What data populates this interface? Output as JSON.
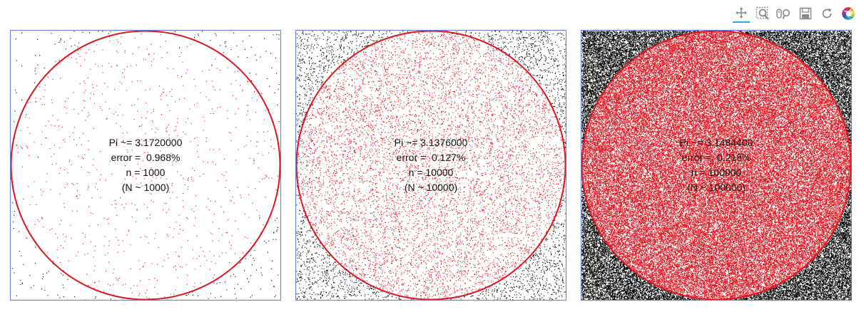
{
  "toolbar": {
    "tools": [
      {
        "name": "pan-tool",
        "icon": "pan-icon",
        "active": true
      },
      {
        "name": "box-zoom-tool",
        "icon": "box-zoom-icon",
        "active": false
      },
      {
        "name": "wheel-zoom-tool",
        "icon": "wheel-zoom-icon",
        "active": false
      },
      {
        "name": "save-tool",
        "icon": "save-icon",
        "active": false
      },
      {
        "name": "reset-tool",
        "icon": "reset-icon",
        "active": false
      },
      {
        "name": "bokeh-logo",
        "icon": "bokeh-logo-icon",
        "active": false
      }
    ]
  },
  "colors": {
    "inside": "#e0141e",
    "outside": "#000000",
    "circle": "#e0141e",
    "frame": "#6b7be8"
  },
  "chart_data": [
    {
      "type": "scatter",
      "n": 1000,
      "xlim": [
        -1,
        1
      ],
      "ylim": [
        -1,
        1
      ],
      "circle_radius": 1,
      "annotations": [
        "Pi ~= 3.1720000",
        "error =  0.968%",
        "n = 1000",
        "(N ~ 1000)"
      ]
    },
    {
      "type": "scatter",
      "n": 10000,
      "xlim": [
        -1,
        1
      ],
      "ylim": [
        -1,
        1
      ],
      "circle_radius": 1,
      "annotations": [
        "Pi ~= 3.1376000",
        "error =  0.127%",
        "n = 10000",
        "(N ~ 10000)"
      ]
    },
    {
      "type": "scatter",
      "n": 100000,
      "xlim": [
        -1,
        1
      ],
      "ylim": [
        -1,
        1
      ],
      "circle_radius": 1,
      "annotations": [
        "Pi ~= 3.1484400",
        "error =  0.218%",
        "n = 100000",
        "(N ~ 100000)"
      ]
    }
  ]
}
